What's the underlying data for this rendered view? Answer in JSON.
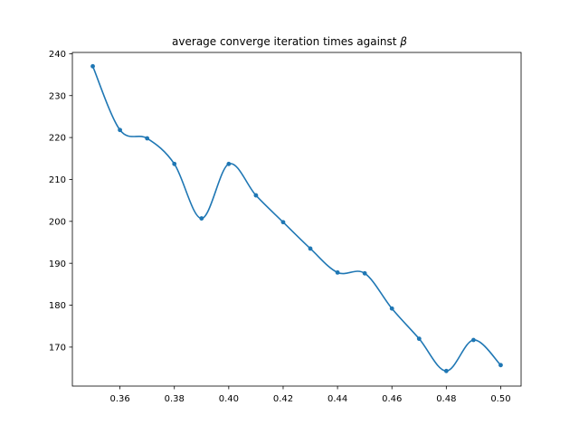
{
  "chart_data": {
    "type": "line",
    "title": "average converge iteration times against ",
    "title_symbol": "β",
    "xlabel": "",
    "ylabel": "",
    "xlim": [
      0.3425,
      0.5075
    ],
    "ylim": [
      160.7,
      240.3
    ],
    "x_ticks": [
      "0.36",
      "0.38",
      "0.40",
      "0.42",
      "0.44",
      "0.46",
      "0.48",
      "0.50"
    ],
    "x_tick_values": [
      0.36,
      0.38,
      0.4,
      0.42,
      0.44,
      0.46,
      0.48,
      0.5
    ],
    "y_ticks": [
      "170",
      "180",
      "190",
      "200",
      "210",
      "220",
      "230",
      "240"
    ],
    "y_tick_values": [
      170,
      180,
      190,
      200,
      210,
      220,
      230,
      240
    ],
    "grid": false,
    "legend": "none",
    "line_color": "#1f77b4",
    "marker": "circle",
    "smoothed": true,
    "series": [
      {
        "x": [
          0.35,
          0.36,
          0.37,
          0.38,
          0.39,
          0.4,
          0.41,
          0.42,
          0.43,
          0.44,
          0.45,
          0.46,
          0.47,
          0.48,
          0.49,
          0.5
        ],
        "values": [
          237.0,
          221.8,
          219.8,
          213.7,
          200.7,
          213.7,
          206.2,
          199.8,
          193.5,
          187.8,
          187.6,
          179.2,
          172.0,
          164.3,
          171.7,
          165.7
        ]
      }
    ]
  }
}
